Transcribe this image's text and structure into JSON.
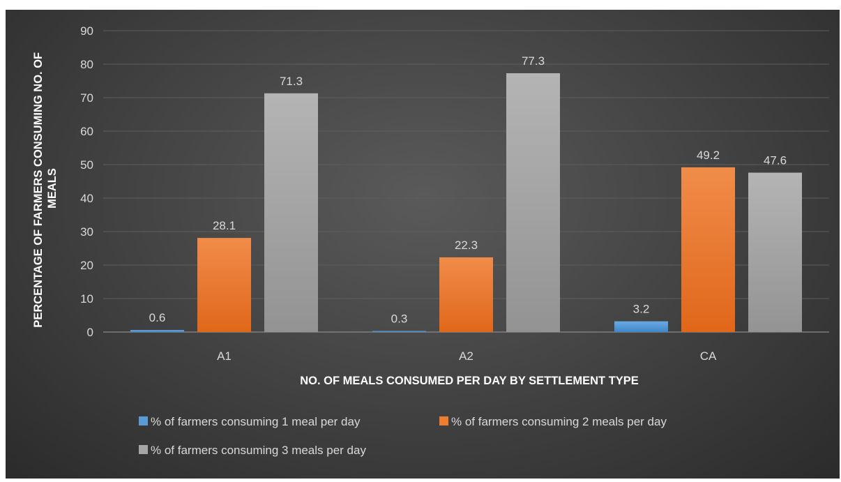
{
  "chart_data": {
    "type": "bar",
    "title": "",
    "xlabel": "NO. OF MEALS CONSUMED PER DAY BY SETTLEMENT TYPE",
    "ylabel": "PERCENTAGE OF FARMERS CONSUMING NO. OF MEALS",
    "ylabel_lines": [
      "PERCENTAGE OF FARMERS CONSUMING NO. OF",
      "MEALS"
    ],
    "categories": [
      "A1",
      "A2",
      "CA"
    ],
    "ylim": [
      0,
      90
    ],
    "yticks": [
      0,
      10,
      20,
      30,
      40,
      50,
      60,
      70,
      80,
      90
    ],
    "grid": true,
    "legend_position": "bottom",
    "series": [
      {
        "name": "% of farmers consuming 1 meal per day",
        "color": "#5b9bd5",
        "values": [
          0.6,
          0.3,
          3.2
        ],
        "labels": [
          "0.6",
          "0.3",
          "3.2"
        ]
      },
      {
        "name": "% of farmers consuming 2 meals per day",
        "color": "#ed7d31",
        "values": [
          28.1,
          22.3,
          49.2
        ],
        "labels": [
          "28.1",
          "22.3",
          "49.2"
        ]
      },
      {
        "name": "% of farmers consuming 3 meals per day",
        "color": "#a5a5a5",
        "values": [
          71.3,
          77.3,
          47.6
        ],
        "labels": [
          "71.3",
          "77.3",
          "47.6"
        ]
      }
    ]
  }
}
